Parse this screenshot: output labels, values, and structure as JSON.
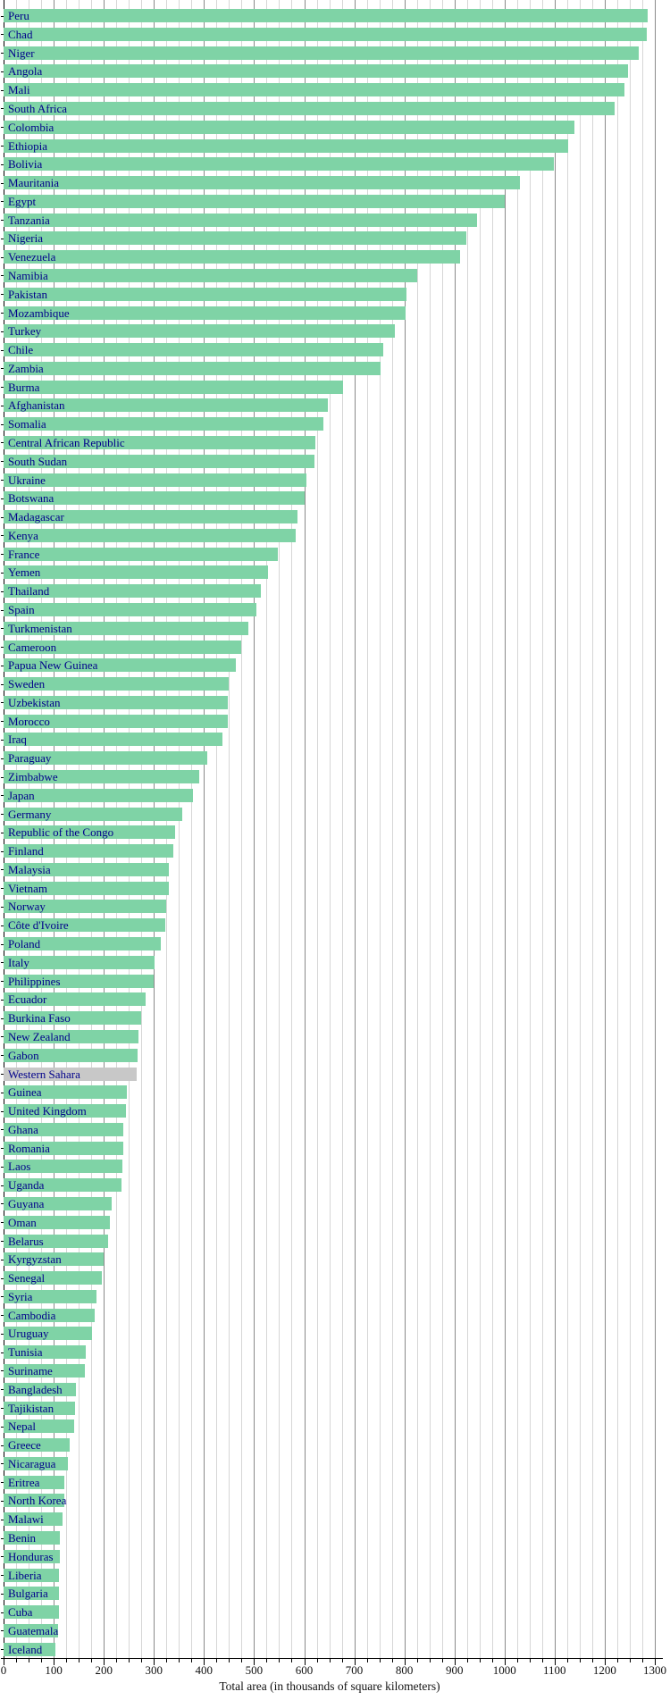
{
  "chart_data": {
    "type": "bar",
    "orientation": "horizontal",
    "title": "",
    "xlabel": "Total area (in thousands of square kilometers)",
    "xlim": [
      0,
      1300
    ],
    "x_major_ticks": [
      0,
      100,
      200,
      300,
      400,
      500,
      600,
      700,
      800,
      900,
      1000,
      1100,
      1200,
      1300
    ],
    "x_minor_step": 25,
    "grid": "on",
    "legend": "none",
    "colors": {
      "bar": "#7fd3a6",
      "highlight_bar": "#c8c8c8",
      "label_text": "#00008b",
      "axis": "#000000",
      "gridline_minor": "#d6d6d6",
      "gridline_major": "#8a8a8a",
      "tick_text": "#111111"
    },
    "highlighted_categories": [
      "Western Sahara"
    ],
    "categories": [
      "Peru",
      "Chad",
      "Niger",
      "Angola",
      "Mali",
      "South Africa",
      "Colombia",
      "Ethiopia",
      "Bolivia",
      "Mauritania",
      "Egypt",
      "Tanzania",
      "Nigeria",
      "Venezuela",
      "Namibia",
      "Pakistan",
      "Mozambique",
      "Turkey",
      "Chile",
      "Zambia",
      "Burma",
      "Afghanistan",
      "Somalia",
      "Central African Republic",
      "South Sudan",
      "Ukraine",
      "Botswana",
      "Madagascar",
      "Kenya",
      "France",
      "Yemen",
      "Thailand",
      "Spain",
      "Turkmenistan",
      "Cameroon",
      "Papua New Guinea",
      "Sweden",
      "Uzbekistan",
      "Morocco",
      "Iraq",
      "Paraguay",
      "Zimbabwe",
      "Japan",
      "Germany",
      "Republic of the Congo",
      "Finland",
      "Malaysia",
      "Vietnam",
      "Norway",
      "Côte d'Ivoire",
      "Poland",
      "Italy",
      "Philippines",
      "Ecuador",
      "Burkina Faso",
      "New Zealand",
      "Gabon",
      "Western Sahara",
      "Guinea",
      "United Kingdom",
      "Ghana",
      "Romania",
      "Laos",
      "Uganda",
      "Guyana",
      "Oman",
      "Belarus",
      "Kyrgyzstan",
      "Senegal",
      "Syria",
      "Cambodia",
      "Uruguay",
      "Tunisia",
      "Suriname",
      "Bangladesh",
      "Tajikistan",
      "Nepal",
      "Greece",
      "Nicaragua",
      "Eritrea",
      "North Korea",
      "Malawi",
      "Benin",
      "Honduras",
      "Liberia",
      "Bulgaria",
      "Cuba",
      "Guatemala",
      "Iceland"
    ],
    "values": [
      1285,
      1284,
      1267,
      1247,
      1240,
      1220,
      1139,
      1127,
      1099,
      1031,
      1001,
      945,
      924,
      912,
      825,
      804,
      802,
      781,
      757,
      753,
      678,
      648,
      638,
      623,
      620,
      604,
      600,
      587,
      583,
      547,
      528,
      514,
      505,
      488,
      475,
      463,
      450,
      447,
      447,
      437,
      407,
      391,
      378,
      357,
      342,
      338,
      330,
      330,
      324,
      322,
      313,
      301,
      300,
      284,
      274,
      269,
      268,
      266,
      246,
      245,
      239,
      238,
      237,
      236,
      215,
      212,
      208,
      199,
      196,
      185,
      181,
      176,
      164,
      163,
      144,
      143,
      141,
      132,
      129,
      121,
      121,
      118,
      113,
      112,
      111,
      111,
      111,
      109,
      103
    ]
  }
}
